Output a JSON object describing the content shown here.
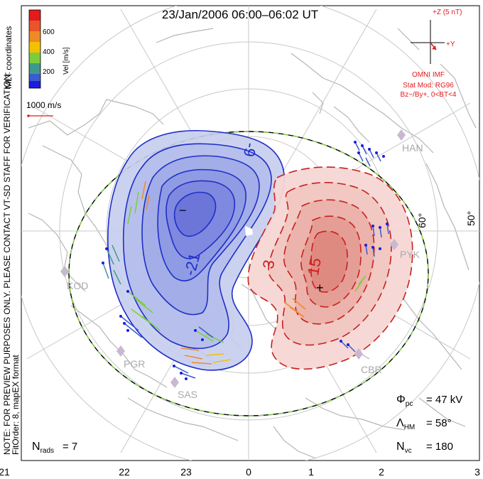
{
  "title": "23/Jan/2006 06:00–06:02 UT",
  "colorbar": {
    "label": "Vel [m/s]",
    "ticks": [
      "600",
      "400",
      "200"
    ],
    "colors": [
      "#e41a1c",
      "#f08a24",
      "#f2c200",
      "#7ccd3c",
      "#3d9a8b",
      "#3b5bd0",
      "#1c1ce0"
    ]
  },
  "coords_label": "MLT coordinates",
  "scale_label": "1000 m/s",
  "note_line1": "NOTE: FOR PREVIEW PURPOSES ONLY. PLEASE CONTACT VT-SD STAFF FOR VERIFICATION.",
  "note_line2": "FitOrder: 8, mapEX format",
  "imf": {
    "z_label": "+Z (5 nT)",
    "y_label": "+Y",
    "source": "OMNI IMF",
    "model": "Stat Mod: RG96",
    "condition": "Bz−/By+, 0<BT<4"
  },
  "contours": {
    "neg_labels": [
      "-9",
      "-21"
    ],
    "pos_labels": [
      "3",
      "15"
    ],
    "min_marker": "−",
    "max_marker": "+"
  },
  "stations": [
    "HAN",
    "PYK",
    "KOD",
    "PGR",
    "SAS",
    "CBR"
  ],
  "lat_labels": [
    "60°",
    "50°"
  ],
  "stats": {
    "phi_pc": "= 47 kV",
    "lambda_hm": "= 58°",
    "n_vc": "= 180",
    "n_rads": "= 7"
  },
  "mlt_ticks": [
    "21",
    "22",
    "23",
    "0",
    "1",
    "2",
    "3"
  ]
}
